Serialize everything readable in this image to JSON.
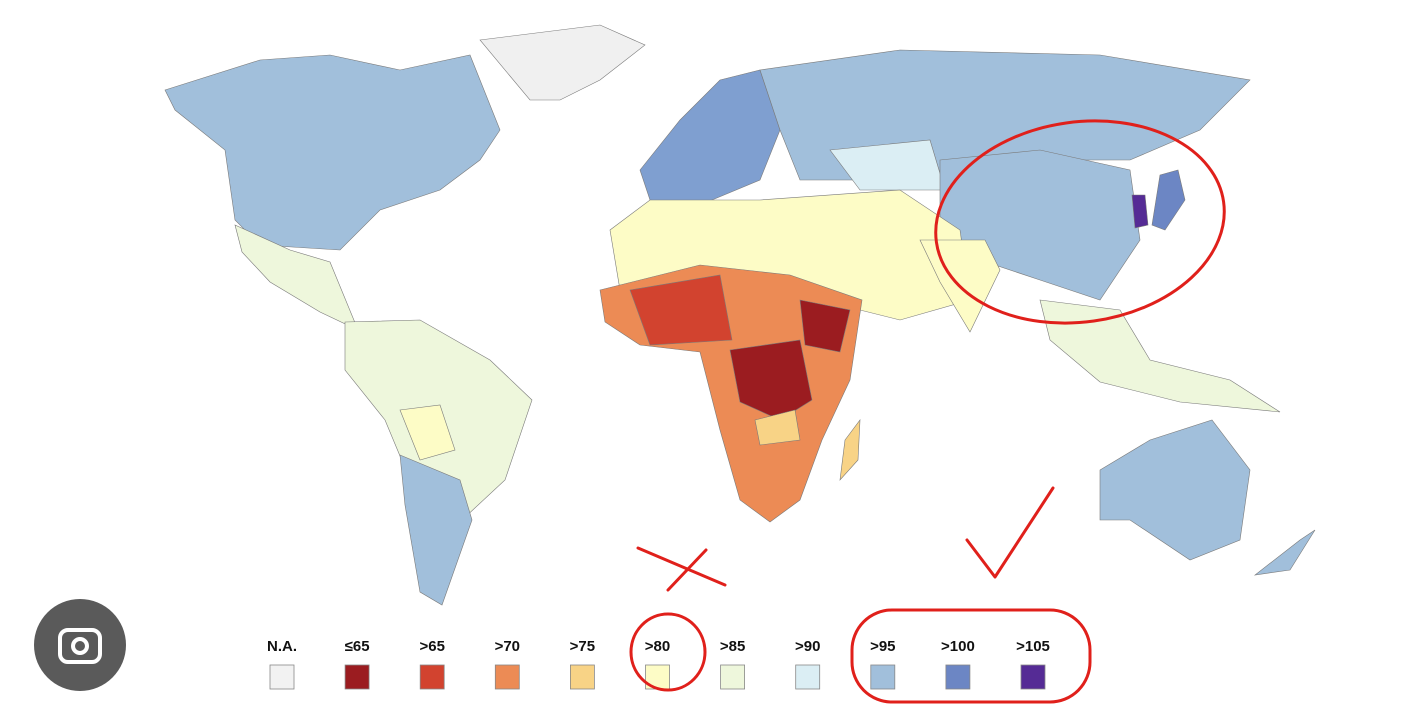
{
  "legend": {
    "items": [
      {
        "label": "N.A.",
        "color": "#f2f2f2"
      },
      {
        "label": "≤65",
        "color": "#9b1c20"
      },
      {
        "label": ">65",
        "color": "#d2432f"
      },
      {
        "label": ">70",
        "color": "#ec8b55"
      },
      {
        "label": ">75",
        "color": "#f8d386"
      },
      {
        "label": ">80",
        "color": "#fdfcc6"
      },
      {
        "label": ">85",
        "color": "#eef7dc"
      },
      {
        "label": ">90",
        "color": "#dbeef4"
      },
      {
        "label": ">95",
        "color": "#a1bfdb"
      },
      {
        "label": ">100",
        "color": "#6c86c4"
      },
      {
        "label": ">105",
        "color": "#552b95"
      }
    ]
  }
}
